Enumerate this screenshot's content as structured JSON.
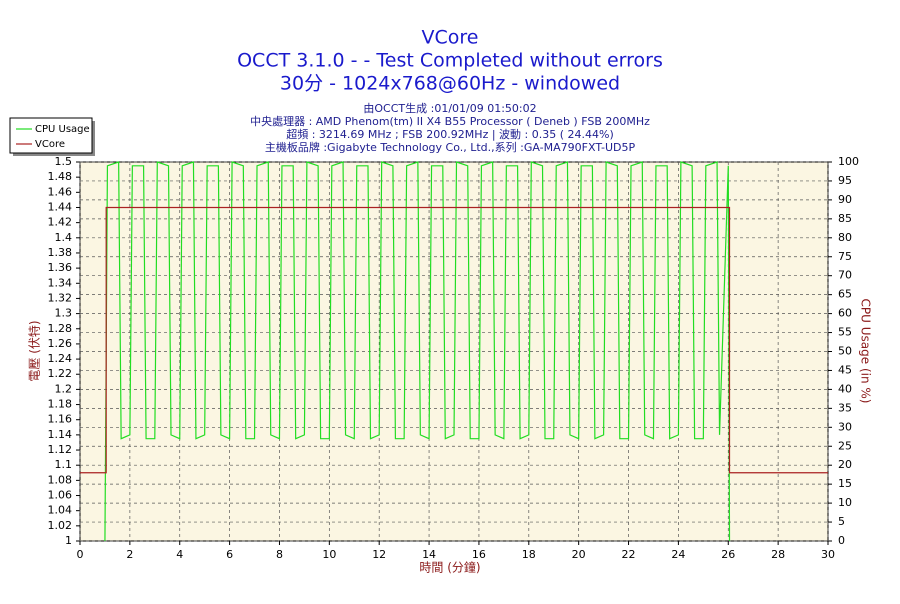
{
  "chart_data": {
    "type": "line",
    "title": "VCore",
    "subtitle": [
      "OCCT 3.1.0 -  - Test Completed without errors",
      "30分 - 1024x768@60Hz - windowed"
    ],
    "info": [
      "由OCCT生成 :01/01/09 01:50:02",
      "中央處理器 : AMD Phenom(tm) II X4 B55 Processor ( Deneb ) FSB 200MHz",
      "超頻 : 3214.69 MHz ; FSB 200.92MHz | 波動 : 0.35 ( 24.44%)",
      "主機板品牌 :Gigabyte Technology Co., Ltd.,系列 :GA-MA790FXT-UD5P"
    ],
    "xlabel": "時間 (分鐘)",
    "ylabel": "電壓 (伏特)",
    "y2label": "CPU Usage (in %)",
    "xlim": [
      0,
      30
    ],
    "xticks": [
      0,
      2,
      4,
      6,
      8,
      10,
      12,
      14,
      16,
      18,
      20,
      22,
      24,
      26,
      28,
      30
    ],
    "ylim": [
      1,
      1.5
    ],
    "yticks": [
      1,
      1.02,
      1.04,
      1.06,
      1.08,
      1.1,
      1.12,
      1.14,
      1.16,
      1.18,
      1.2,
      1.22,
      1.24,
      1.26,
      1.28,
      1.3,
      1.32,
      1.34,
      1.36,
      1.38,
      1.4,
      1.42,
      1.44,
      1.46,
      1.48,
      1.5
    ],
    "y2lim": [
      0,
      100
    ],
    "y2ticks": [
      0,
      5,
      10,
      15,
      20,
      25,
      30,
      35,
      40,
      45,
      50,
      55,
      60,
      65,
      70,
      75,
      80,
      85,
      90,
      95,
      100
    ],
    "grid": true,
    "legend": "top-left",
    "series": [
      {
        "name": "CPU Usage",
        "color": "#22dd22",
        "axis": "y2",
        "x": [
          1.0,
          1.1,
          1.55,
          1.65,
          2.0,
          2.1,
          2.55,
          2.65,
          3.0,
          3.1,
          3.55,
          3.65,
          4.0,
          4.1,
          4.55,
          4.65,
          5.0,
          5.1,
          5.55,
          5.65,
          6.0,
          6.1,
          6.55,
          6.65,
          7.0,
          7.1,
          7.55,
          7.65,
          8.0,
          8.1,
          8.55,
          8.65,
          9.0,
          9.1,
          9.55,
          9.65,
          10.0,
          10.1,
          10.55,
          10.65,
          11.0,
          11.1,
          11.55,
          11.65,
          12.0,
          12.1,
          12.55,
          12.65,
          13.0,
          13.1,
          13.55,
          13.65,
          14.0,
          14.1,
          14.55,
          14.65,
          15.0,
          15.1,
          15.55,
          15.65,
          16.0,
          16.1,
          16.55,
          16.65,
          17.0,
          17.1,
          17.55,
          17.65,
          18.0,
          18.1,
          18.55,
          18.65,
          19.0,
          19.1,
          19.55,
          19.65,
          20.0,
          20.1,
          20.55,
          20.65,
          21.0,
          21.1,
          21.55,
          21.65,
          22.0,
          22.1,
          22.55,
          22.65,
          23.0,
          23.1,
          23.55,
          23.65,
          24.0,
          24.1,
          24.55,
          24.65,
          25.0,
          25.1,
          25.55,
          25.65,
          26.0,
          26.05
        ],
        "values": [
          0,
          99,
          100,
          27,
          28,
          99,
          99,
          27,
          27,
          100,
          99,
          28,
          27,
          99,
          100,
          27,
          28,
          99,
          99,
          28,
          27,
          100,
          99,
          27,
          27,
          99,
          100,
          28,
          27,
          99,
          99,
          27,
          28,
          100,
          99,
          27,
          27,
          99,
          100,
          28,
          27,
          99,
          99,
          27,
          28,
          100,
          99,
          27,
          27,
          99,
          100,
          28,
          27,
          99,
          99,
          27,
          28,
          100,
          99,
          27,
          27,
          99,
          100,
          28,
          27,
          99,
          99,
          27,
          28,
          100,
          99,
          27,
          27,
          99,
          100,
          28,
          27,
          99,
          99,
          27,
          28,
          100,
          99,
          27,
          27,
          99,
          100,
          28,
          27,
          99,
          99,
          27,
          28,
          100,
          99,
          27,
          27,
          99,
          100,
          28,
          99,
          0
        ]
      },
      {
        "name": "VCore",
        "color": "#aa2222",
        "axis": "y",
        "x": [
          0,
          1.05,
          1.05,
          26.05,
          26.05,
          30
        ],
        "values": [
          1.09,
          1.09,
          1.44,
          1.44,
          1.09,
          1.09
        ]
      }
    ]
  }
}
